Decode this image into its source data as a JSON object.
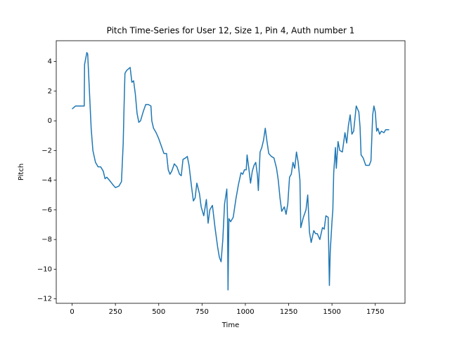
{
  "chart_data": {
    "type": "line",
    "title": "Pitch Time-Series for User 12, Size 1, Pin 4, Auth number 1",
    "x_label": "Time",
    "y_label": "Pitch",
    "xlim": [
      -91.5,
      1921.5
    ],
    "ylim": [
      -12.3,
      5.4
    ],
    "xticks": [
      0,
      250,
      500,
      750,
      1000,
      1250,
      1500,
      1750
    ],
    "yticks": [
      {
        "value": -12,
        "label": "−12"
      },
      {
        "value": -10,
        "label": "−10"
      },
      {
        "value": -8,
        "label": "−8"
      },
      {
        "value": -6,
        "label": "−6"
      },
      {
        "value": -4,
        "label": "−4"
      },
      {
        "value": -2,
        "label": "−2"
      },
      0,
      2,
      4
    ],
    "series": [
      {
        "color": "#1f77b4",
        "x": [
          0,
          20,
          70,
          72,
          85,
          90,
          100,
          110,
          120,
          135,
          150,
          165,
          180,
          190,
          200,
          215,
          235,
          250,
          270,
          285,
          295,
          300,
          305,
          315,
          325,
          335,
          345,
          355,
          365,
          375,
          385,
          395,
          410,
          425,
          440,
          455,
          460,
          470,
          485,
          500,
          515,
          530,
          545,
          555,
          565,
          575,
          590,
          605,
          620,
          630,
          640,
          655,
          665,
          675,
          690,
          700,
          710,
          720,
          735,
          745,
          760,
          775,
          785,
          795,
          810,
          825,
          840,
          850,
          860,
          870,
          880,
          893,
          897,
          900,
          905,
          915,
          930,
          945,
          960,
          975,
          985,
          995,
          1005,
          1010,
          1020,
          1030,
          1040,
          1050,
          1060,
          1070,
          1075,
          1085,
          1095,
          1105,
          1115,
          1125,
          1135,
          1150,
          1165,
          1180,
          1190,
          1200,
          1210,
          1225,
          1235,
          1245,
          1255,
          1265,
          1275,
          1285,
          1295,
          1305,
          1315,
          1320,
          1335,
          1350,
          1360,
          1370,
          1380,
          1395,
          1405,
          1415,
          1430,
          1445,
          1455,
          1465,
          1478,
          1485,
          1490,
          1500,
          1505,
          1510,
          1520,
          1525,
          1535,
          1545,
          1560,
          1575,
          1585,
          1595,
          1605,
          1615,
          1625,
          1640,
          1655,
          1662,
          1668,
          1680,
          1695,
          1715,
          1725,
          1735,
          1742,
          1750,
          1758,
          1765,
          1775,
          1785,
          1800,
          1810,
          1830
        ],
        "values": [
          0.8,
          1.0,
          1.0,
          3.8,
          4.6,
          4.5,
          2,
          -0.5,
          -2,
          -2.8,
          -3.1,
          -3.1,
          -3.4,
          -3.9,
          -3.8,
          -4.0,
          -4.3,
          -4.5,
          -4.4,
          -4.1,
          -1.5,
          1.0,
          3.2,
          3.4,
          3.5,
          3.6,
          2.6,
          2.7,
          1.8,
          0.5,
          -0.1,
          0,
          0.6,
          1.1,
          1.1,
          1.0,
          0,
          -0.5,
          -0.8,
          -1.2,
          -1.7,
          -2.2,
          -2.2,
          -3.3,
          -3.6,
          -3.4,
          -2.9,
          -3.1,
          -3.6,
          -3.7,
          -2.6,
          -2.5,
          -2.4,
          -3.0,
          -4.5,
          -5.4,
          -5.2,
          -4.2,
          -4.9,
          -5.8,
          -6.4,
          -5.3,
          -6.9,
          -6.0,
          -5.7,
          -7.2,
          -8.5,
          -9.2,
          -9.5,
          -8.0,
          -5.6,
          -4.6,
          -6.5,
          -11.4,
          -6.6,
          -6.8,
          -6.5,
          -5.3,
          -4.3,
          -3.5,
          -3.6,
          -3.3,
          -3.3,
          -2.3,
          -3.2,
          -4.2,
          -3.4,
          -3.0,
          -2.8,
          -3.7,
          -4.7,
          -2.1,
          -1.8,
          -1.3,
          -0.5,
          -1.4,
          -2.2,
          -2.4,
          -2.5,
          -3.2,
          -4.0,
          -5.2,
          -6.1,
          -5.8,
          -6.3,
          -5.6,
          -3.8,
          -3.6,
          -2.8,
          -3.2,
          -2.1,
          -2.8,
          -4.0,
          -7.2,
          -6.5,
          -6.0,
          -5.0,
          -7.5,
          -8.2,
          -7.4,
          -7.6,
          -7.6,
          -8.0,
          -7.2,
          -7.3,
          -6.4,
          -6.5,
          -11.1,
          -8.8,
          -6.8,
          -6.0,
          -3.5,
          -1.8,
          -3.2,
          -1.4,
          -2.0,
          -2.1,
          -0.8,
          -1.5,
          -0.3,
          0.4,
          -0.9,
          -0.7,
          1.0,
          0.6,
          -0.4,
          -2.3,
          -2.5,
          -3.0,
          -3.0,
          -2.7,
          0.4,
          1.0,
          0.6,
          -0.7,
          -0.5,
          -0.9,
          -0.7,
          -0.8,
          -0.6,
          -0.6
        ]
      }
    ]
  }
}
